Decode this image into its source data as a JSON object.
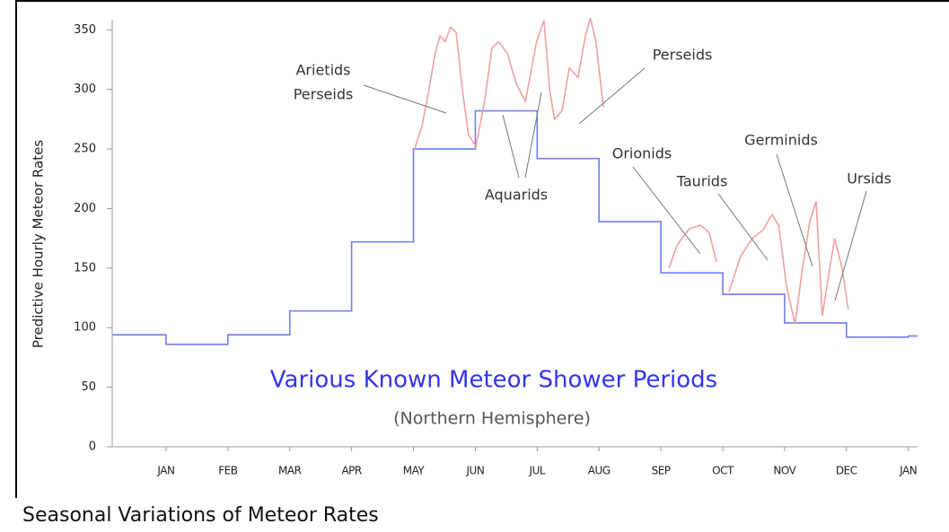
{
  "chart_data": {
    "type": "line",
    "title": "Various Known Meteor Shower Periods",
    "subtitle": "(Northern Hemisphere)",
    "y_label": "Predictive Hourly Meteor Rates",
    "caption": "Seasonal Variations of Meteor Rates",
    "ylim": [
      0,
      360
    ],
    "yticks": [
      0,
      50,
      100,
      150,
      200,
      250,
      300,
      350
    ],
    "xlim": [
      0.13,
      13.15
    ],
    "xticks": [
      {
        "value": 1,
        "label": "JAN"
      },
      {
        "value": 2,
        "label": "FEB"
      },
      {
        "value": 3,
        "label": "MAR"
      },
      {
        "value": 4,
        "label": "APR"
      },
      {
        "value": 5,
        "label": "MAY"
      },
      {
        "value": 6,
        "label": "JUN"
      },
      {
        "value": 7,
        "label": "JUL"
      },
      {
        "value": 8,
        "label": "AUG"
      },
      {
        "value": 9,
        "label": "SEP"
      },
      {
        "value": 10,
        "label": "OCT"
      },
      {
        "value": 11,
        "label": "NOV"
      },
      {
        "value": 12,
        "label": "DEC"
      },
      {
        "value": 13,
        "label": "JAN"
      }
    ],
    "series": [
      {
        "color": "#6f7ff0",
        "step": "post",
        "x": [
          0.13,
          1,
          2,
          3,
          4,
          5,
          6,
          7,
          8,
          9,
          10,
          11,
          12,
          13
        ],
        "values": [
          94,
          86,
          94,
          114,
          172,
          250,
          282,
          242,
          189,
          146,
          128,
          104,
          92,
          93
        ]
      },
      {
        "color": "#f0a0a0",
        "x": [
          5.02,
          5.14,
          5.25,
          5.35,
          5.43,
          5.51,
          5.6,
          5.69,
          5.79,
          5.89,
          6.01,
          6.15,
          6.27,
          6.38,
          6.52,
          6.66,
          6.81,
          6.99,
          7.11,
          7.2,
          7.28,
          7.4,
          7.52,
          7.66,
          7.78,
          7.86,
          7.95,
          8.07,
          null,
          9.13,
          9.27,
          9.46,
          9.64,
          9.78,
          9.9,
          null,
          10.1,
          10.29,
          10.48,
          10.65,
          10.8,
          10.91,
          11.03,
          11.17,
          11.29,
          11.41,
          11.51,
          11.61,
          11.73,
          11.81,
          11.93,
          12.03
        ],
        "values": [
          250,
          270,
          300,
          330,
          345,
          340,
          352,
          348,
          300,
          262,
          252,
          290,
          335,
          340,
          330,
          305,
          290,
          340,
          358,
          300,
          275,
          282,
          318,
          310,
          345,
          360,
          340,
          285,
          null,
          150,
          170,
          183,
          186,
          180,
          155,
          null,
          130,
          160,
          175,
          182,
          195,
          185,
          135,
          103,
          150,
          190,
          206,
          110,
          150,
          175,
          150,
          115
        ]
      }
    ],
    "annotations": [
      {
        "text": [
          "Arietids",
          "Perseids"
        ]
      },
      {
        "text": [
          "Aquarids"
        ]
      },
      {
        "text": [
          "Perseids"
        ]
      },
      {
        "text": [
          "Orionids"
        ]
      },
      {
        "text": [
          "Taurids"
        ]
      },
      {
        "text": [
          "Germinids"
        ]
      },
      {
        "text": [
          "Ursids"
        ]
      }
    ]
  }
}
